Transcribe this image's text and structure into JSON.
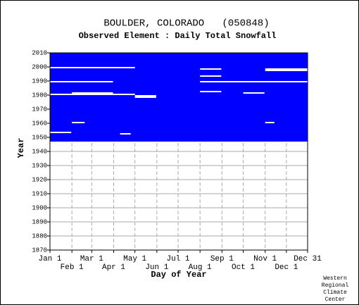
{
  "chart_data": {
    "type": "availability",
    "title": "BOULDER, COLORADO   (050848)",
    "subtitle": "Observed Element : Daily Total Snowfall",
    "xlabel": "Day of Year",
    "ylabel": "Year",
    "color": "#0000ff",
    "coverage": [
      1947,
      2010
    ],
    "xlim": [
      1,
      365
    ],
    "xticks": [
      {
        "value": 1,
        "label": "Jan 1"
      },
      {
        "value": 32,
        "label": "Feb 1"
      },
      {
        "value": 60,
        "label": "Mar 1"
      },
      {
        "value": 91,
        "label": "Apr 1"
      },
      {
        "value": 121,
        "label": "May 1"
      },
      {
        "value": 152,
        "label": "Jun 1"
      },
      {
        "value": 182,
        "label": "Jul 1"
      },
      {
        "value": 213,
        "label": "Aug 1"
      },
      {
        "value": 244,
        "label": "Sep 1"
      },
      {
        "value": 274,
        "label": "Oct 1"
      },
      {
        "value": 305,
        "label": "Nov 1"
      },
      {
        "value": 335,
        "label": "Dec 1"
      },
      {
        "value": 365,
        "label": "Dec 31"
      }
    ],
    "ylim": [
      1870,
      2010
    ],
    "yticks": [
      1870,
      1880,
      1890,
      1900,
      1910,
      1920,
      1930,
      1940,
      1950,
      1960,
      1970,
      1980,
      1990,
      2000,
      2010
    ],
    "gaps": [
      {
        "year": 1999,
        "start": 1,
        "end": 121
      },
      {
        "year": 1998,
        "start": 213,
        "end": 243
      },
      {
        "year": 1998,
        "start": 305,
        "end": 365
      },
      {
        "year": 1997,
        "start": 305,
        "end": 365
      },
      {
        "year": 1993,
        "start": 213,
        "end": 243
      },
      {
        "year": 1989,
        "start": 1,
        "end": 90
      },
      {
        "year": 1989,
        "start": 213,
        "end": 365
      },
      {
        "year": 1982,
        "start": 213,
        "end": 243
      },
      {
        "year": 1981,
        "start": 32,
        "end": 90
      },
      {
        "year": 1981,
        "start": 274,
        "end": 304
      },
      {
        "year": 1980,
        "start": 1,
        "end": 121
      },
      {
        "year": 1979,
        "start": 121,
        "end": 151
      },
      {
        "year": 1978,
        "start": 121,
        "end": 151
      },
      {
        "year": 1960,
        "start": 32,
        "end": 50
      },
      {
        "year": 1960,
        "start": 305,
        "end": 318
      },
      {
        "year": 1953,
        "start": 1,
        "end": 31
      },
      {
        "year": 1952,
        "start": 100,
        "end": 115
      }
    ],
    "credit": [
      "Western",
      "Regional",
      "Climate",
      "Center"
    ]
  }
}
